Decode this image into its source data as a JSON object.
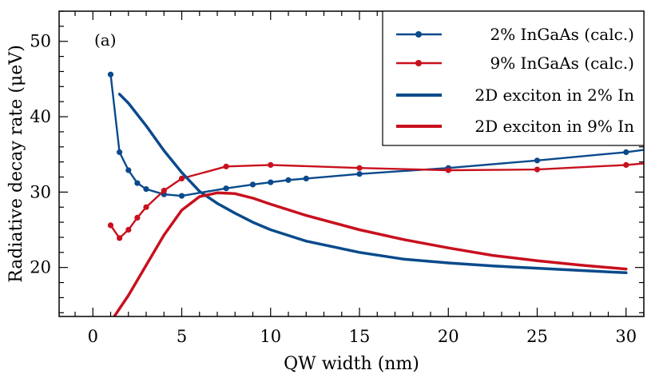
{
  "chart_data": {
    "type": "line",
    "panel_label": "(a)",
    "xlabel": "QW width (nm)",
    "ylabel": "Radiative decay rate (μeV)",
    "xlim": [
      -1.9,
      31
    ],
    "ylim": [
      13.5,
      54
    ],
    "x_ticks": [
      0,
      5,
      10,
      15,
      20,
      25,
      30
    ],
    "y_ticks": [
      20,
      30,
      40,
      50
    ],
    "x_minor_step": 1,
    "y_minor_step": 2,
    "legend_position": "top-right",
    "series": [
      {
        "name": "2% InGaAs (calc.)",
        "color": "#0a4a8c",
        "style": "line-markers",
        "points": [
          [
            1,
            45.6
          ],
          [
            1.5,
            35.3
          ],
          [
            2,
            32.9
          ],
          [
            2.5,
            31.2
          ],
          [
            3,
            30.4
          ],
          [
            4,
            29.7
          ],
          [
            5,
            29.5
          ],
          [
            7.5,
            30.5
          ],
          [
            9,
            31.0
          ],
          [
            10,
            31.3
          ],
          [
            11,
            31.6
          ],
          [
            12,
            31.8
          ],
          [
            15,
            32.4
          ],
          [
            20,
            33.2
          ],
          [
            25,
            34.2
          ],
          [
            30,
            35.3
          ],
          [
            31,
            35.6
          ]
        ]
      },
      {
        "name": "9% InGaAs (calc.)",
        "color": "#c8101e",
        "style": "line-markers",
        "points": [
          [
            1,
            25.6
          ],
          [
            1.5,
            23.9
          ],
          [
            2,
            25.0
          ],
          [
            2.5,
            26.6
          ],
          [
            3,
            28.0
          ],
          [
            4,
            30.2
          ],
          [
            5,
            31.8
          ],
          [
            7.5,
            33.4
          ],
          [
            10,
            33.6
          ],
          [
            15,
            33.2
          ],
          [
            20,
            32.9
          ],
          [
            25,
            33.0
          ],
          [
            30,
            33.6
          ],
          [
            31,
            33.8
          ]
        ]
      },
      {
        "name": "2D exciton in 2% In",
        "color": "#0a4a8c",
        "style": "line",
        "points": [
          [
            1.5,
            43.0
          ],
          [
            2,
            41.8
          ],
          [
            3,
            38.8
          ],
          [
            4,
            35.5
          ],
          [
            5,
            32.6
          ],
          [
            6,
            30.1
          ],
          [
            7,
            28.5
          ],
          [
            8,
            27.2
          ],
          [
            9,
            26.0
          ],
          [
            10,
            25.0
          ],
          [
            12,
            23.5
          ],
          [
            15,
            22.0
          ],
          [
            17.5,
            21.1
          ],
          [
            20,
            20.6
          ],
          [
            22.5,
            20.2
          ],
          [
            25,
            19.9
          ],
          [
            27.5,
            19.6
          ],
          [
            30,
            19.3
          ]
        ]
      },
      {
        "name": "2D exciton in 9% In",
        "color": "#c8101e",
        "style": "line",
        "points": [
          [
            1.2,
            13.5
          ],
          [
            2,
            16.3
          ],
          [
            3,
            20.3
          ],
          [
            4,
            24.3
          ],
          [
            5,
            27.6
          ],
          [
            6,
            29.4
          ],
          [
            7,
            29.9
          ],
          [
            8,
            29.8
          ],
          [
            9,
            29.2
          ],
          [
            10,
            28.4
          ],
          [
            12,
            26.9
          ],
          [
            15,
            25.0
          ],
          [
            17.5,
            23.7
          ],
          [
            20,
            22.6
          ],
          [
            22.5,
            21.6
          ],
          [
            25,
            20.9
          ],
          [
            27.5,
            20.3
          ],
          [
            30,
            19.8
          ]
        ]
      }
    ]
  }
}
